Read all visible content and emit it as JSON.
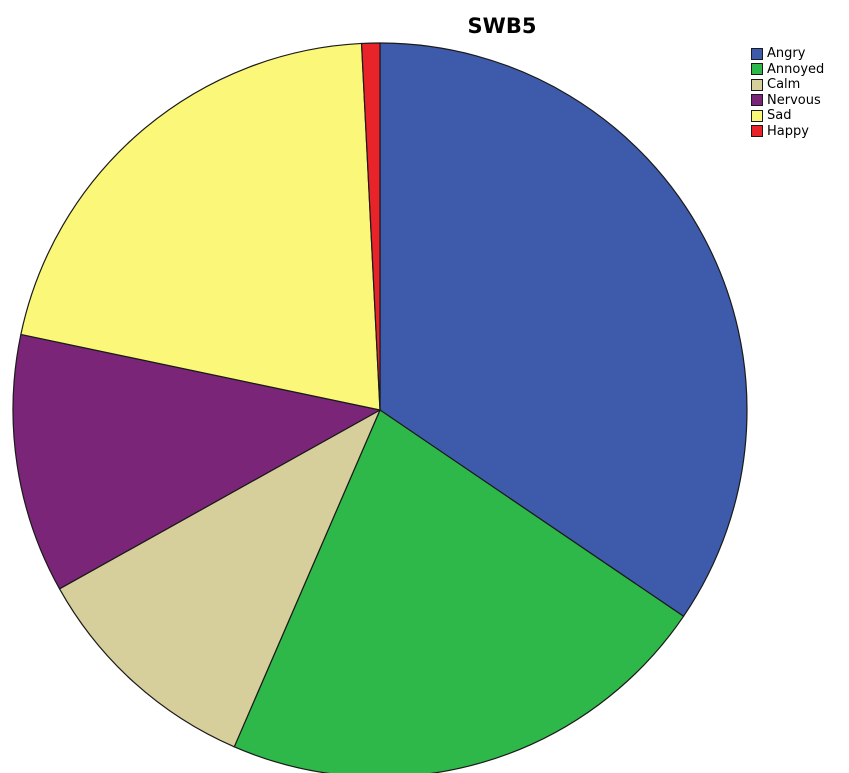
{
  "chart_data": {
    "type": "pie",
    "title": "SWB5",
    "legend_position": "top-right",
    "slices": [
      {
        "label": "Angry",
        "value": 34.5,
        "color": "#3e5aab"
      },
      {
        "label": "Annoyed",
        "value": 22.0,
        "color": "#2fb84a"
      },
      {
        "label": "Calm",
        "value": 10.4,
        "color": "#d6ce9b"
      },
      {
        "label": "Nervous",
        "value": 11.4,
        "color": "#7b2578"
      },
      {
        "label": "Sad",
        "value": 20.9,
        "color": "#fbf778"
      },
      {
        "label": "Happy",
        "value": 0.8,
        "color": "#e8232a"
      }
    ]
  }
}
